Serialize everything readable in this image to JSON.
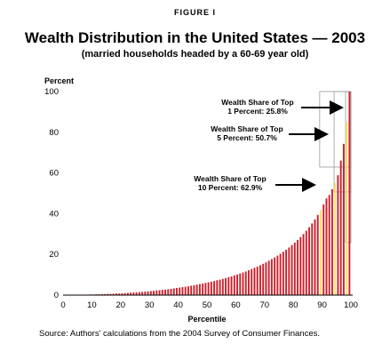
{
  "figure_label": "FIGURE I",
  "title": "Wealth Distribution in the United States — 2003",
  "subtitle": "(married households headed by a 60-69 year old)",
  "source": "Source: Authors' calculations from the 2004 Survey of Consumer Finances.",
  "colors": {
    "bar": "#cc1f2a",
    "highlight": "#ffe066",
    "outline": "#9a9a9a",
    "axis": "#000000"
  },
  "chart_data": {
    "type": "bar",
    "title": "Wealth Distribution in the United States — 2003",
    "xlabel": "Percentile",
    "ylabel": "Percent",
    "xlim": [
      0,
      100
    ],
    "ylim": [
      0,
      100
    ],
    "xticks": [
      0,
      10,
      20,
      30,
      40,
      50,
      60,
      70,
      80,
      90,
      100
    ],
    "yticks": [
      0,
      20,
      40,
      60,
      80,
      100
    ],
    "grid": false,
    "x": [
      1,
      2,
      3,
      4,
      5,
      6,
      7,
      8,
      9,
      10,
      11,
      12,
      13,
      14,
      15,
      16,
      17,
      18,
      19,
      20,
      21,
      22,
      23,
      24,
      25,
      26,
      27,
      28,
      29,
      30,
      31,
      32,
      33,
      34,
      35,
      36,
      37,
      38,
      39,
      40,
      41,
      42,
      43,
      44,
      45,
      46,
      47,
      48,
      49,
      50,
      51,
      52,
      53,
      54,
      55,
      56,
      57,
      58,
      59,
      60,
      61,
      62,
      63,
      64,
      65,
      66,
      67,
      68,
      69,
      70,
      71,
      72,
      73,
      74,
      75,
      76,
      77,
      78,
      79,
      80,
      81,
      82,
      83,
      84,
      85,
      86,
      87,
      88,
      89,
      90,
      91,
      92,
      93,
      94,
      95,
      96,
      97,
      98,
      99,
      100
    ],
    "values": [
      0.1,
      0.1,
      0.1,
      0.1,
      0.1,
      0.1,
      0.2,
      0.2,
      0.2,
      0.3,
      0.3,
      0.4,
      0.4,
      0.5,
      0.5,
      0.6,
      0.6,
      0.7,
      0.8,
      0.8,
      0.9,
      1.0,
      1.1,
      1.2,
      1.3,
      1.4,
      1.5,
      1.6,
      1.7,
      1.8,
      2.0,
      2.1,
      2.3,
      2.4,
      2.6,
      2.7,
      2.9,
      3.1,
      3.3,
      3.5,
      3.7,
      3.9,
      4.1,
      4.3,
      4.6,
      4.8,
      5.1,
      5.4,
      5.7,
      6.0,
      6.3,
      6.6,
      6.9,
      7.3,
      7.6,
      8.0,
      8.4,
      8.8,
      9.2,
      9.7,
      10.1,
      10.6,
      11.1,
      11.6,
      12.2,
      12.8,
      13.4,
      14.0,
      14.7,
      15.4,
      16.1,
      16.9,
      17.7,
      18.5,
      19.4,
      20.3,
      21.3,
      22.3,
      23.4,
      24.6,
      25.8,
      27.1,
      28.5,
      30.0,
      31.6,
      33.3,
      35.2,
      37.2,
      39.4,
      41.8,
      44.5,
      47.5,
      49.2,
      52.0,
      55.2,
      58.9,
      66.1,
      74.3,
      84.9,
      100.0
    ],
    "cumulative_shares": [
      {
        "label_line1": "Wealth Share of Top",
        "label_line2": "1 Percent: 25.8%",
        "from": 99,
        "to": 100,
        "value": 25.8
      },
      {
        "label_line1": "Wealth Share of Top",
        "label_line2": "5 Percent: 50.7%",
        "from": 95,
        "to": 100,
        "value": 50.7
      },
      {
        "label_line1": "Wealth Share of Top",
        "label_line2": "10 Percent: 62.9%",
        "from": 90,
        "to": 100,
        "value": 62.9
      }
    ]
  }
}
